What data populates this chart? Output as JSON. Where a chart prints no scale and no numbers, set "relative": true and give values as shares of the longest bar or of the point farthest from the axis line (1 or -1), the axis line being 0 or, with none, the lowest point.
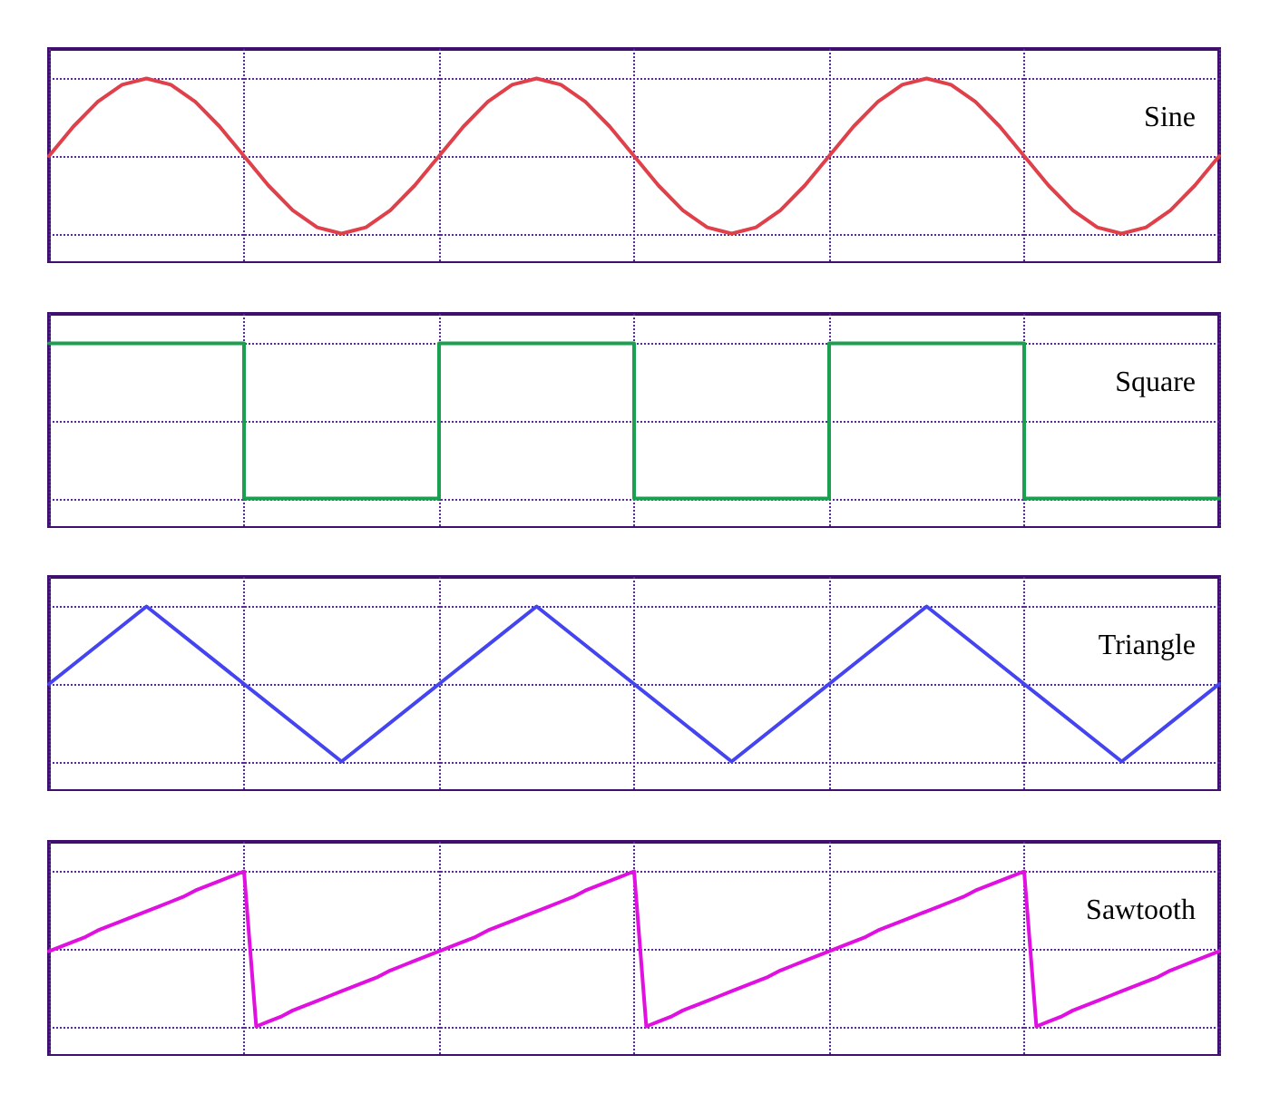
{
  "chart_data": [
    {
      "type": "line",
      "title": "Sine",
      "relative": true,
      "grid": true,
      "tick_labels": false,
      "marker": "none",
      "line_style": "solid",
      "categories": [
        null,
        null,
        null,
        null,
        null,
        null,
        null,
        null,
        null,
        null,
        null,
        null,
        null,
        null,
        null,
        null,
        null,
        null,
        null,
        null,
        null,
        null,
        null,
        null,
        null,
        null,
        null,
        null,
        null,
        null,
        null,
        null,
        null,
        null,
        null,
        null,
        null,
        null,
        null,
        null,
        null,
        null,
        null,
        null,
        null,
        null,
        null,
        null,
        null
      ],
      "series": [
        {
          "color": "#e0404a",
          "values": [
            0.5,
            0.69,
            0.85,
            0.96,
            1,
            0.96,
            0.85,
            0.69,
            0.5,
            0.31,
            0.15,
            0.04,
            0,
            0.04,
            0.15,
            0.31,
            0.5,
            0.69,
            0.85,
            0.96,
            1,
            0.96,
            0.85,
            0.69,
            0.5,
            0.31,
            0.15,
            0.04,
            0,
            0.04,
            0.15,
            0.31,
            0.5,
            0.69,
            0.85,
            0.96,
            1,
            0.96,
            0.85,
            0.69,
            0.5,
            0.31,
            0.15,
            0.04,
            0,
            0.04,
            0.15,
            0.31,
            0.5
          ]
        }
      ]
    },
    {
      "type": "step",
      "title": "Square",
      "relative": true,
      "grid": true,
      "tick_labels": false,
      "marker": "none",
      "line_style": "solid",
      "categories": [
        null,
        null,
        null,
        null,
        null,
        null,
        null
      ],
      "series": [
        {
          "color": "#1aa050",
          "values": [
            1,
            0,
            1,
            0,
            1,
            0,
            0
          ]
        }
      ]
    },
    {
      "type": "line",
      "title": "Triangle",
      "relative": true,
      "grid": true,
      "tick_labels": false,
      "marker": "none",
      "line_style": "solid",
      "categories": [
        null,
        null,
        null,
        null,
        null,
        null,
        null,
        null,
        null,
        null,
        null,
        null,
        null
      ],
      "series": [
        {
          "color": "#4444f0",
          "values": [
            0.5,
            1,
            0.5,
            0,
            0.5,
            1,
            0.5,
            0,
            0.5,
            1,
            0.5,
            0,
            0.5
          ]
        }
      ]
    },
    {
      "type": "line",
      "title": "Sawtooth",
      "relative": true,
      "grid": true,
      "tick_labels": false,
      "marker": "none",
      "line_style": "solid",
      "categories": [
        null,
        null,
        null,
        null,
        null,
        null,
        null,
        null,
        null,
        null,
        null,
        null,
        null,
        null,
        null,
        null,
        null,
        null,
        null,
        null,
        null,
        null,
        null,
        null,
        null,
        null,
        null,
        null,
        null,
        null,
        null,
        null,
        null,
        null,
        null,
        null,
        null,
        null,
        null,
        null,
        null,
        null,
        null,
        null,
        null,
        null,
        null,
        null,
        null,
        null,
        null,
        null,
        null,
        null,
        null,
        null,
        null,
        null,
        null,
        null,
        null,
        null,
        null,
        null,
        null,
        null,
        null,
        null,
        null,
        null,
        null,
        null,
        null,
        null,
        null,
        null,
        null,
        null,
        null,
        null,
        null,
        null,
        null,
        null,
        null,
        null,
        null,
        null,
        null,
        null,
        null,
        null,
        null,
        null,
        null,
        null,
        null
      ],
      "series": [
        {
          "color": "#e010e0",
          "values": [
            0.5,
            0.53,
            0.56,
            0.59,
            0.63,
            0.66,
            0.69,
            0.72,
            0.75,
            0.78,
            0.81,
            0.84,
            0.88,
            0.91,
            0.94,
            0.97,
            1,
            0.03,
            0.06,
            0.09,
            0.13,
            0.16,
            0.19,
            0.22,
            0.25,
            0.28,
            0.31,
            0.34,
            0.38,
            0.41,
            0.44,
            0.47,
            0.5,
            0.53,
            0.56,
            0.59,
            0.63,
            0.66,
            0.69,
            0.72,
            0.75,
            0.78,
            0.81,
            0.84,
            0.88,
            0.91,
            0.94,
            0.97,
            1,
            0.03,
            0.06,
            0.09,
            0.13,
            0.16,
            0.19,
            0.22,
            0.25,
            0.28,
            0.31,
            0.34,
            0.38,
            0.41,
            0.44,
            0.47,
            0.5,
            0.53,
            0.56,
            0.59,
            0.63,
            0.66,
            0.69,
            0.72,
            0.75,
            0.78,
            0.81,
            0.84,
            0.88,
            0.91,
            0.94,
            0.97,
            1,
            0.03,
            0.06,
            0.09,
            0.13,
            0.16,
            0.19,
            0.22,
            0.25,
            0.28,
            0.31,
            0.34,
            0.38,
            0.41,
            0.44,
            0.47,
            0.5
          ]
        }
      ]
    }
  ]
}
